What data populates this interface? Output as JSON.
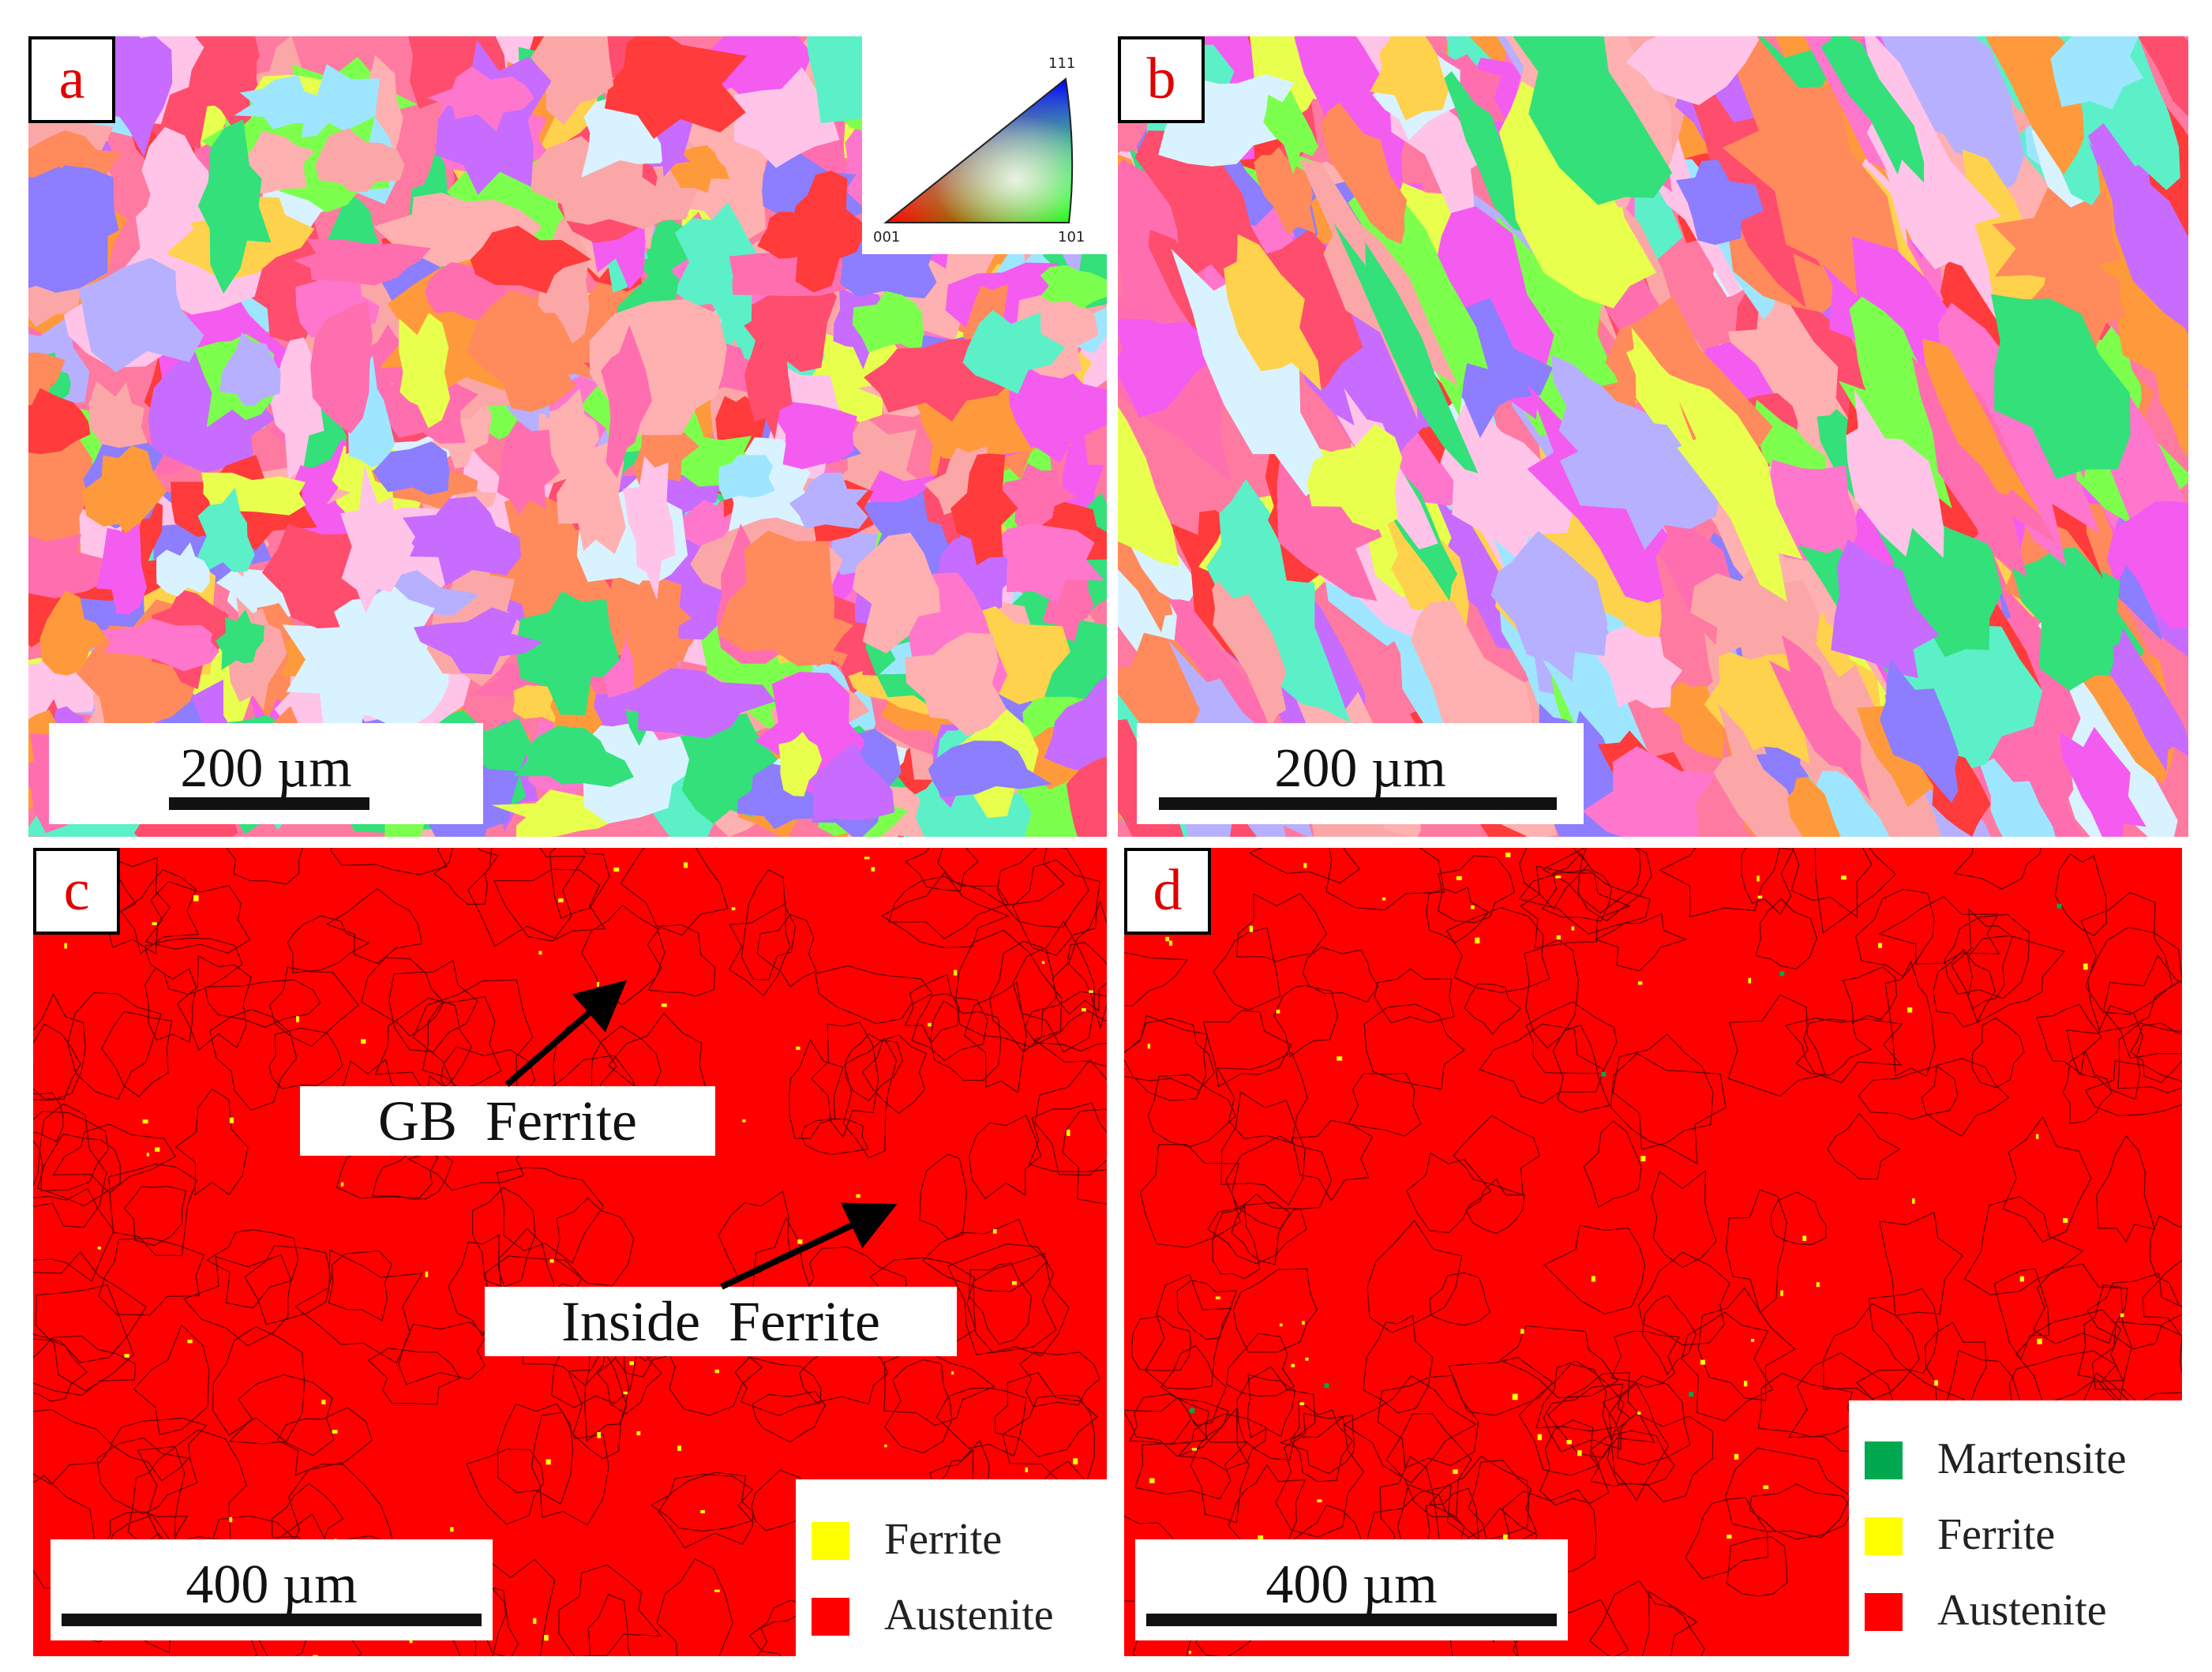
{
  "panels": [
    {
      "letter": "a",
      "scale_label": "200 µm"
    },
    {
      "letter": "b",
      "scale_label": "200 µm"
    },
    {
      "letter": "c",
      "scale_label": "400 µm"
    },
    {
      "letter": "d",
      "scale_label": "400 µm"
    }
  ],
  "ipf_key": {
    "top": "111",
    "left": "001",
    "right": "101"
  },
  "annotations": {
    "gb_ferrite": "GB  Ferrite",
    "inside_ferrite": "Inside  Ferrite"
  },
  "legend_c": [
    "Ferrite",
    "Austenite"
  ],
  "legend_d": [
    "Martensite",
    "Ferrite",
    "Austenite"
  ],
  "colors": {
    "austenite": "#ff0000",
    "ferrite": "#ffff00",
    "martensite": "#00a84f",
    "label_text": "#e00000"
  }
}
